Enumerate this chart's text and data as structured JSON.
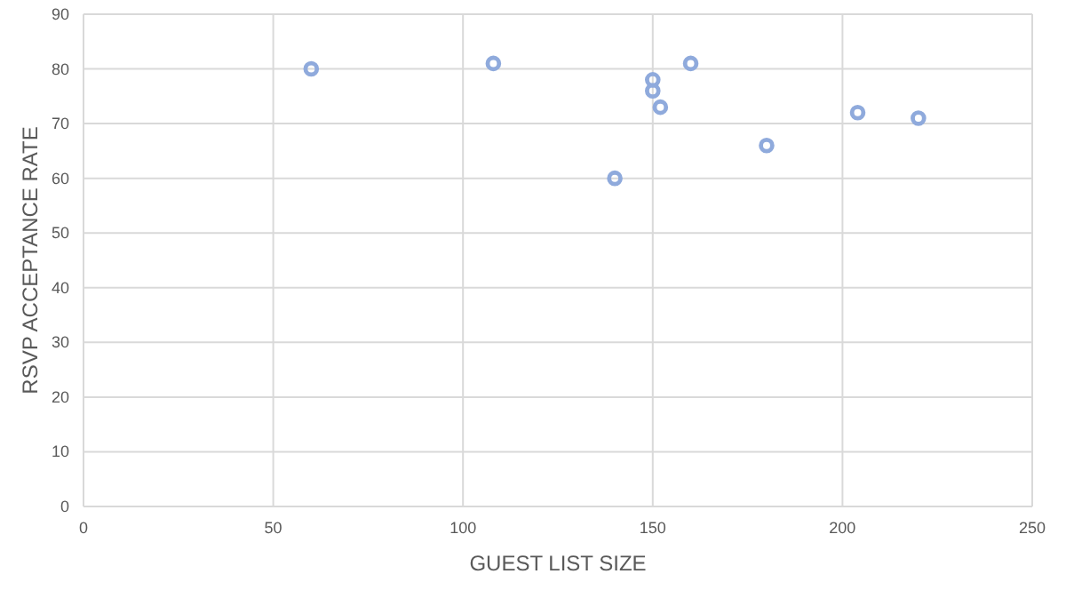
{
  "chart_data": {
    "type": "scatter",
    "xlabel": "GUEST LIST SIZE",
    "ylabel": "RSVP ACCEPTANCE RATE",
    "x": [
      60,
      108,
      140,
      150,
      150,
      152,
      160,
      180,
      204,
      220
    ],
    "values": [
      80,
      81,
      60,
      78,
      76,
      73,
      81,
      66,
      72,
      71
    ],
    "color": "#8faadc",
    "marker": "circle",
    "grid": true,
    "xlim": [
      0,
      250
    ],
    "xticks": [
      0,
      50,
      100,
      150,
      200,
      250
    ],
    "ylim": [
      0,
      90
    ],
    "yticks": [
      0,
      10,
      20,
      30,
      40,
      50,
      60,
      70,
      80,
      90
    ]
  }
}
